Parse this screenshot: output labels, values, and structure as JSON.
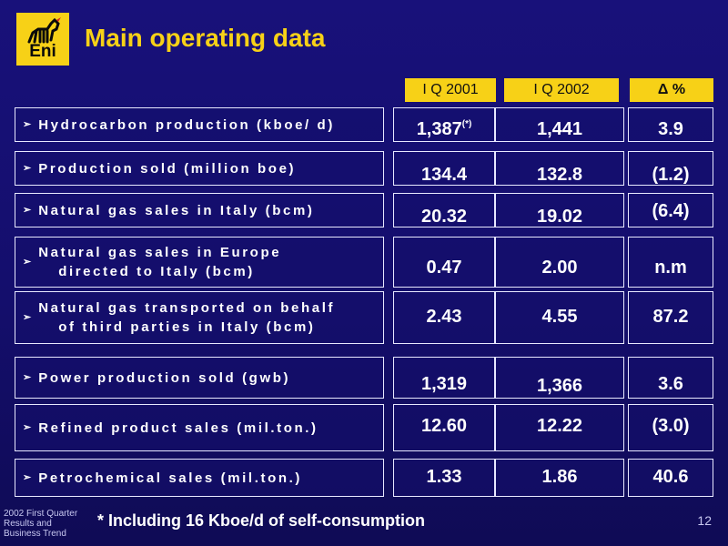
{
  "logo": {
    "brand": "Eni"
  },
  "title": "Main operating data",
  "columns": [
    "I Q 2001",
    "I Q 2002",
    "Δ %"
  ],
  "rows": [
    {
      "label": [
        "Hydrocarbon production  (kboe/ d)"
      ],
      "v1": "1,387",
      "v1_sup": "(*)",
      "v2": "1,441",
      "v3": "3.9"
    },
    {
      "label": [
        "Production  sold (million boe)"
      ],
      "v1": "134.4",
      "v2": "132.8",
      "v3": "(1.2)"
    },
    {
      "label": [
        "Natural gas sales in Italy (bcm)"
      ],
      "v1": "20.32",
      "v2": "19.02",
      "v3": "(6.4)"
    },
    {
      "label": [
        "Natural gas sales in Europe",
        "directed to Italy (bcm)"
      ],
      "v1": "0.47",
      "v2": "2.00",
      "v3": "n.m"
    },
    {
      "label": [
        "Natural gas transported on behalf",
        "of third parties in Italy (bcm)"
      ],
      "v1": "2.43",
      "v2": "4.55",
      "v3": "87.2"
    },
    {
      "label": [
        "Power production sold (gwb)"
      ],
      "v1": "1,319",
      "v2": "1,366",
      "v3": "3.6"
    },
    {
      "label": [
        "Refined product sales  (mil.ton.)"
      ],
      "v1": "12.60",
      "v2": "12.22",
      "v3": "(3.0)"
    },
    {
      "label": [
        "Petrochemical sales (mil.ton.)"
      ],
      "v1": "1.33",
      "v2": "1.86",
      "v3": "40.6"
    }
  ],
  "footer": {
    "left": [
      "2002 First Quarter",
      "Results and",
      "Business Trend"
    ],
    "note": "* Including 16 Kboe/d of self-consumption",
    "page": "12"
  }
}
